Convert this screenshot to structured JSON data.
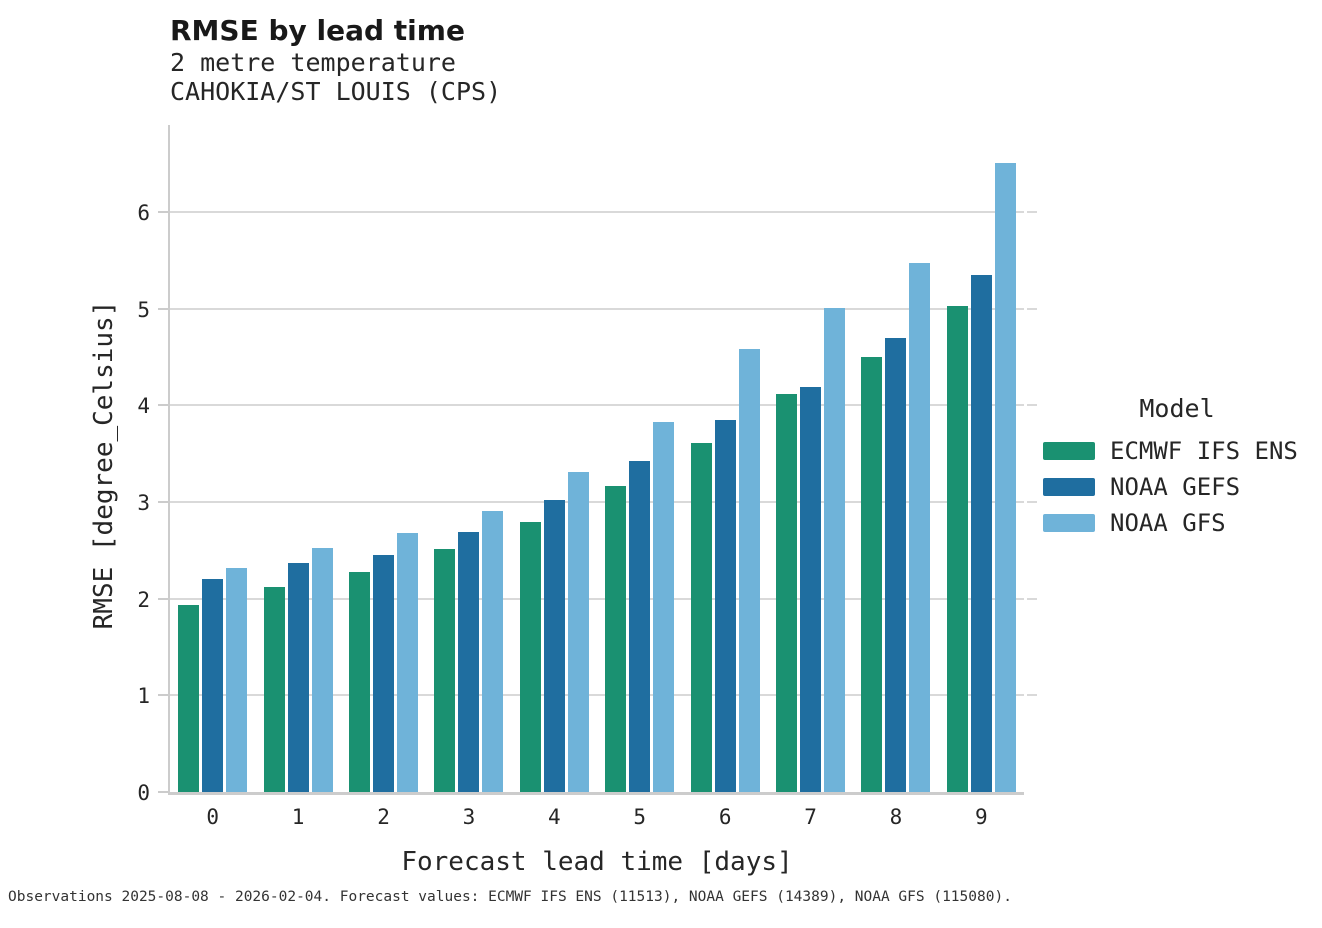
{
  "header": {
    "title": "RMSE by lead time",
    "subtitle_line1": "2 metre temperature",
    "subtitle_line2": "CAHOKIA/ST LOUIS (CPS)"
  },
  "legend": {
    "title": "Model",
    "items": [
      {
        "label": "ECMWF IFS ENS",
        "color": "#1a9171"
      },
      {
        "label": "NOAA GEFS",
        "color": "#1f6ea0"
      },
      {
        "label": "NOAA GFS",
        "color": "#6fb3d9"
      }
    ]
  },
  "footer": {
    "text": "Observations 2025-08-08 - 2026-02-04. Forecast values: ECMWF IFS ENS (11513), NOAA GEFS (14389), NOAA GFS (115080)."
  },
  "chart_data": {
    "type": "bar",
    "title": "RMSE by lead time",
    "subtitle": [
      "2 metre temperature",
      "CAHOKIA/ST LOUIS (CPS)"
    ],
    "xlabel": "Forecast lead time [days]",
    "ylabel": "RMSE [degree_Celsius]",
    "categories": [
      "0",
      "1",
      "2",
      "3",
      "4",
      "5",
      "6",
      "7",
      "8",
      "9"
    ],
    "series": [
      {
        "name": "ECMWF IFS ENS",
        "color": "#1a9171",
        "values": [
          1.94,
          2.12,
          2.28,
          2.51,
          2.79,
          3.17,
          3.61,
          4.12,
          4.5,
          5.03
        ]
      },
      {
        "name": "NOAA GEFS",
        "color": "#1f6ea0",
        "values": [
          2.2,
          2.37,
          2.45,
          2.69,
          3.02,
          3.42,
          3.85,
          4.19,
          4.7,
          5.35
        ]
      },
      {
        "name": "NOAA GFS",
        "color": "#6fb3d9",
        "values": [
          2.32,
          2.52,
          2.68,
          2.91,
          3.31,
          3.83,
          4.58,
          5.01,
          5.47,
          6.51
        ]
      }
    ],
    "ylim": [
      0,
      6.9
    ],
    "yticks": [
      0,
      1,
      2,
      3,
      4,
      5,
      6
    ],
    "grid": true,
    "legend_title": "Model",
    "legend_position": "right",
    "caption": "Observations 2025-08-08 - 2026-02-04. Forecast values: ECMWF IFS ENS (11513), NOAA GEFS (14389), NOAA GFS (115080)."
  }
}
